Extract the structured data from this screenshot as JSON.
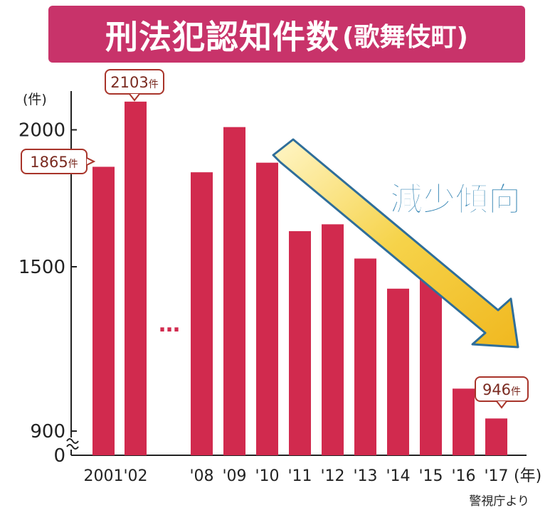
{
  "title": "刑法犯認知件数",
  "subtitle": "(歌舞伎町)",
  "source": "警視庁より",
  "trend_label": "減少傾向",
  "colors": {
    "bar": "#d12a4e",
    "title_bg": "#c8336a",
    "arrow": "#f4c430",
    "arrow_outline": "#2f6e9a",
    "trend_text": "#2b7fb0",
    "callout_border": "#a8342a"
  },
  "chart_data": {
    "type": "bar",
    "title": "刑法犯認知件数(歌舞伎町)",
    "ylabel": "(件)",
    "xlabel": "(年)",
    "categories": [
      "2001",
      "'02",
      "'08",
      "'09",
      "'10",
      "'11",
      "'12",
      "'13",
      "'14",
      "'15",
      "'16",
      "'17"
    ],
    "values": [
      1865,
      2103,
      1845,
      2010,
      1880,
      1630,
      1655,
      1530,
      1420,
      1480,
      1055,
      946
    ],
    "y_ticks": [
      "2000",
      "1500",
      "900",
      "0"
    ],
    "axis_break": true,
    "gap_marker": "…",
    "callouts": [
      {
        "category": "2001",
        "text": "1865件"
      },
      {
        "category": "'02",
        "text": "2103件"
      },
      {
        "category": "'17",
        "text": "946件"
      }
    ],
    "grid": false,
    "legend": "none"
  }
}
